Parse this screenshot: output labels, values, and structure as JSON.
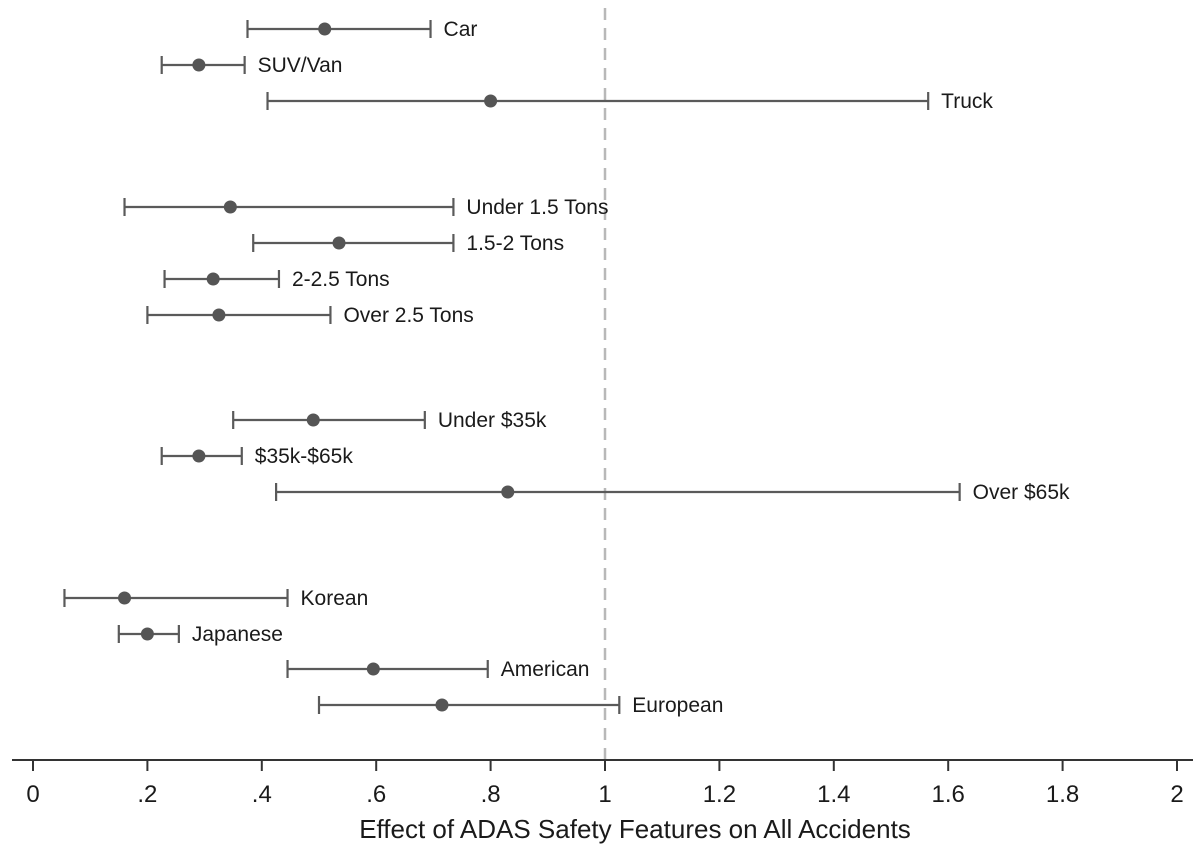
{
  "chart_data": {
    "type": "coefficient-plot",
    "xlabel": "Effect of ADAS Safety Features on All Accidents",
    "xlim": [
      0,
      2
    ],
    "xticks": [
      0,
      0.2,
      0.4,
      0.6,
      0.8,
      1.0,
      1.2,
      1.4,
      1.6,
      1.8,
      2.0
    ],
    "xtick_labels": [
      "0",
      ".2",
      ".4",
      ".6",
      ".8",
      "1",
      "1.2",
      "1.4",
      "1.6",
      "1.8",
      "2"
    ],
    "reference_line": 1,
    "groups": [
      {
        "items": [
          {
            "label": "Car",
            "estimate": 0.51,
            "lower": 0.375,
            "upper": 0.695
          },
          {
            "label": "SUV/Van",
            "estimate": 0.29,
            "lower": 0.225,
            "upper": 0.37
          },
          {
            "label": "Truck",
            "estimate": 0.8,
            "lower": 0.41,
            "upper": 1.565
          }
        ]
      },
      {
        "items": [
          {
            "label": "Under 1.5 Tons",
            "estimate": 0.345,
            "lower": 0.16,
            "upper": 0.735
          },
          {
            "label": "1.5-2 Tons",
            "estimate": 0.535,
            "lower": 0.385,
            "upper": 0.735
          },
          {
            "label": "2-2.5 Tons",
            "estimate": 0.315,
            "lower": 0.23,
            "upper": 0.43
          },
          {
            "label": "Over 2.5 Tons",
            "estimate": 0.325,
            "lower": 0.2,
            "upper": 0.52
          }
        ]
      },
      {
        "items": [
          {
            "label": "Under $35k",
            "estimate": 0.49,
            "lower": 0.35,
            "upper": 0.685
          },
          {
            "label": "$35k-$65k",
            "estimate": 0.29,
            "lower": 0.225,
            "upper": 0.365
          },
          {
            "label": "Over $65k",
            "estimate": 0.83,
            "lower": 0.425,
            "upper": 1.62
          }
        ]
      },
      {
        "items": [
          {
            "label": "Korean",
            "estimate": 0.16,
            "lower": 0.055,
            "upper": 0.445
          },
          {
            "label": "Japanese",
            "estimate": 0.2,
            "lower": 0.15,
            "upper": 0.255
          },
          {
            "label": "American",
            "estimate": 0.595,
            "lower": 0.445,
            "upper": 0.795
          },
          {
            "label": "European",
            "estimate": 0.715,
            "lower": 0.5,
            "upper": 1.025
          }
        ]
      }
    ],
    "grid": false,
    "colors": {
      "marker": "#555555",
      "ci": "#5a5a5a",
      "reference": "#b8b8b8"
    }
  }
}
